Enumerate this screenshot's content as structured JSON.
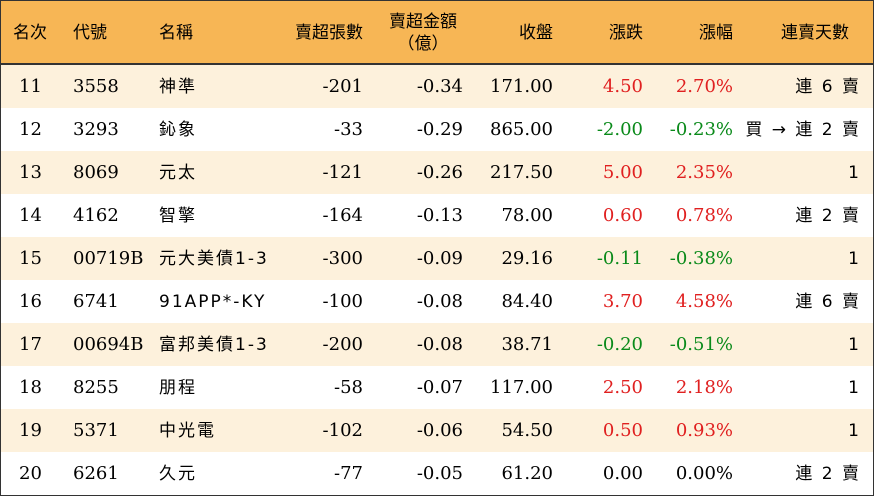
{
  "headers": {
    "rank": "名次",
    "code": "代號",
    "name": "名稱",
    "net_sell_lots": "賣超張數",
    "net_sell_amount_line1": "賣超金額",
    "net_sell_amount_line2": "（億）",
    "close": "收盤",
    "change": "漲跌",
    "change_pct": "漲幅",
    "consecutive_sell_days": "連賣天數"
  },
  "colors": {
    "header_bg": "#f7b655",
    "odd_row_bg": "#fdf1dc",
    "up": "#e02020",
    "down": "#0a8a1a",
    "flat": "#000000"
  },
  "rows": [
    {
      "rank": "11",
      "code": "3558",
      "name": "神準",
      "lots": "-201",
      "amount": "-0.34",
      "close": "171.00",
      "change": "4.50",
      "change_pct": "2.70%",
      "direction": "up",
      "days": "連 6 賣"
    },
    {
      "rank": "12",
      "code": "3293",
      "name": "鈊象",
      "lots": "-33",
      "amount": "-0.29",
      "close": "865.00",
      "change": "-2.00",
      "change_pct": "-0.23%",
      "direction": "down",
      "days": "買 → 連 2 賣"
    },
    {
      "rank": "13",
      "code": "8069",
      "name": "元太",
      "lots": "-121",
      "amount": "-0.26",
      "close": "217.50",
      "change": "5.00",
      "change_pct": "2.35%",
      "direction": "up",
      "days": "1"
    },
    {
      "rank": "14",
      "code": "4162",
      "name": "智擎",
      "lots": "-164",
      "amount": "-0.13",
      "close": "78.00",
      "change": "0.60",
      "change_pct": "0.78%",
      "direction": "up",
      "days": "連 2 賣"
    },
    {
      "rank": "15",
      "code": "00719B",
      "name": "元大美債1-3",
      "lots": "-300",
      "amount": "-0.09",
      "close": "29.16",
      "change": "-0.11",
      "change_pct": "-0.38%",
      "direction": "down",
      "days": "1"
    },
    {
      "rank": "16",
      "code": "6741",
      "name": "91APP*-KY",
      "lots": "-100",
      "amount": "-0.08",
      "close": "84.40",
      "change": "3.70",
      "change_pct": "4.58%",
      "direction": "up",
      "days": "連 6 賣"
    },
    {
      "rank": "17",
      "code": "00694B",
      "name": "富邦美債1-3",
      "lots": "-200",
      "amount": "-0.08",
      "close": "38.71",
      "change": "-0.20",
      "change_pct": "-0.51%",
      "direction": "down",
      "days": "1"
    },
    {
      "rank": "18",
      "code": "8255",
      "name": "朋程",
      "lots": "-58",
      "amount": "-0.07",
      "close": "117.00",
      "change": "2.50",
      "change_pct": "2.18%",
      "direction": "up",
      "days": "1"
    },
    {
      "rank": "19",
      "code": "5371",
      "name": "中光電",
      "lots": "-102",
      "amount": "-0.06",
      "close": "54.50",
      "change": "0.50",
      "change_pct": "0.93%",
      "direction": "up",
      "days": "1"
    },
    {
      "rank": "20",
      "code": "6261",
      "name": "久元",
      "lots": "-77",
      "amount": "-0.05",
      "close": "61.20",
      "change": "0.00",
      "change_pct": "0.00%",
      "direction": "flat",
      "days": "連 2 賣"
    }
  ]
}
